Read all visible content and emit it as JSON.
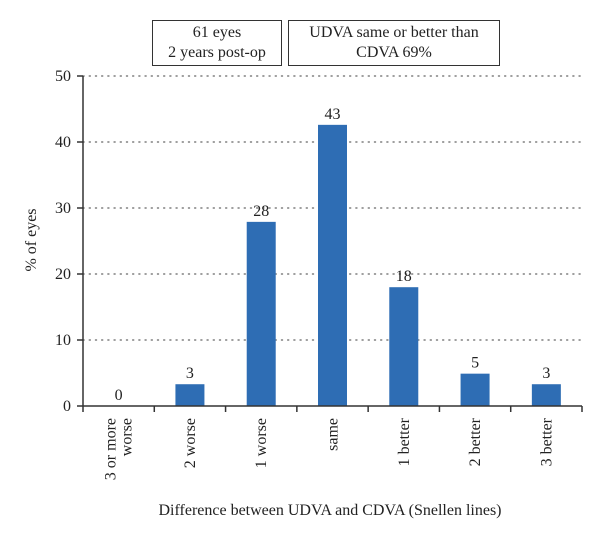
{
  "annotations": {
    "box1": {
      "line1": "61 eyes",
      "line2": "2 years post-op"
    },
    "box2": {
      "line1": "UDVA same or better than",
      "line2": "CDVA 69%"
    }
  },
  "colors": {
    "bar": "#2e6db4",
    "axis": "#333333",
    "grid": "#666666"
  },
  "chart_data": {
    "type": "bar",
    "categories": [
      [
        "3 or more",
        "worse"
      ],
      [
        "2 worse"
      ],
      [
        "1 worse"
      ],
      [
        "same"
      ],
      [
        "1 better"
      ],
      [
        "2 better"
      ],
      [
        "3 better"
      ]
    ],
    "values": [
      0,
      3.3,
      27.9,
      42.6,
      18,
      4.9,
      3.3
    ],
    "data_labels": [
      "0",
      "3",
      "28",
      "43",
      "18",
      "5",
      "3"
    ],
    "xlabel": "Difference between UDVA and CDVA (Snellen lines)",
    "ylabel": "% of eyes",
    "ylim": [
      0,
      50
    ],
    "yticks": [
      0,
      10,
      20,
      30,
      40,
      50
    ],
    "grid": "horizontal dotted"
  }
}
